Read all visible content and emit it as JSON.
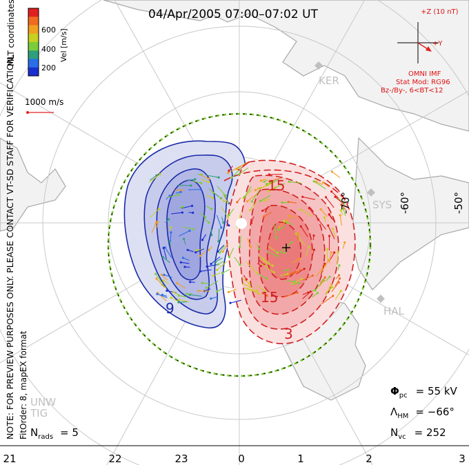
{
  "title": "04/Apr/2005 07:00–07:02 UT",
  "colorbar": {
    "label": "Vel [m/s]",
    "ticks": [
      "600",
      "400",
      "200"
    ],
    "colors": [
      "#1a2fd0",
      "#2a6ee8",
      "#2f9e7a",
      "#7acc3a",
      "#c8d020",
      "#f0a020",
      "#f06a20",
      "#e02020"
    ]
  },
  "coordinates_label": "MLT coordinates",
  "scale_vector_label": "1000 m/s",
  "note_text": "NOTE: FOR PREVIEW PURPOSES ONLY. PLEASE CONTACT VT-SD STAFF FOR VERIFICATION.",
  "fit_text": "FitOrder: 8, mapEX format",
  "imf": {
    "z_label": "+Z (10 nT)",
    "y_label": "+Y",
    "source": "OMNI IMF",
    "model": "Stat Mod: RG96",
    "condition": "Bz-/By-, 6<BT<12"
  },
  "stations": [
    "KER",
    "SYS",
    "HAL",
    "UNW",
    "TIG"
  ],
  "latitude_labels": [
    "-70°",
    "-60°",
    "-50°"
  ],
  "contour_labels": [
    "15",
    "15",
    "3",
    "9"
  ],
  "stats": {
    "pcp_symbol": "Φ",
    "pcp_sub": "pc",
    "pcp_value": "= 55 kV",
    "hm_symbol": "Λ",
    "hm_sub": "HM",
    "hm_value": "= −66°",
    "nvc_sym": "N",
    "nvc_sub": "vc",
    "nvc_value": "= 252",
    "nrads_sym": "N",
    "nrads_sub": "rads",
    "nrads_value": "= 5"
  },
  "mlt_labels": [
    "21",
    "22",
    "23",
    "0",
    "1",
    "2",
    "3"
  ],
  "colors": {
    "positive": "#d02020",
    "negative": "#1a2aa8",
    "heppner_maynard": "#7ac832",
    "grid": "#c8c8c8",
    "coast": "#a8a8a8"
  }
}
